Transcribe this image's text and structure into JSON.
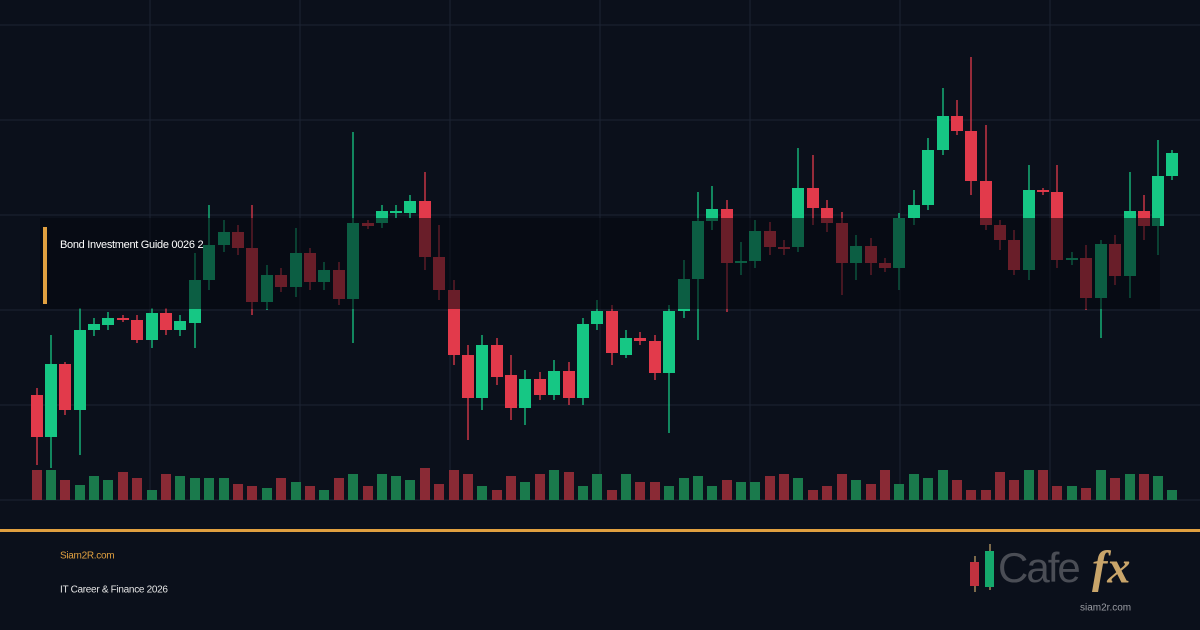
{
  "overlay": {
    "label": "Bond Investment Guide 0026 2"
  },
  "footer": {
    "site": "Siam2R.com",
    "tagline": "IT Career & Finance 2026"
  },
  "logo": {
    "brand_left": "Cafe",
    "brand_right": "fx",
    "domain": "siam2r.com"
  }
}
